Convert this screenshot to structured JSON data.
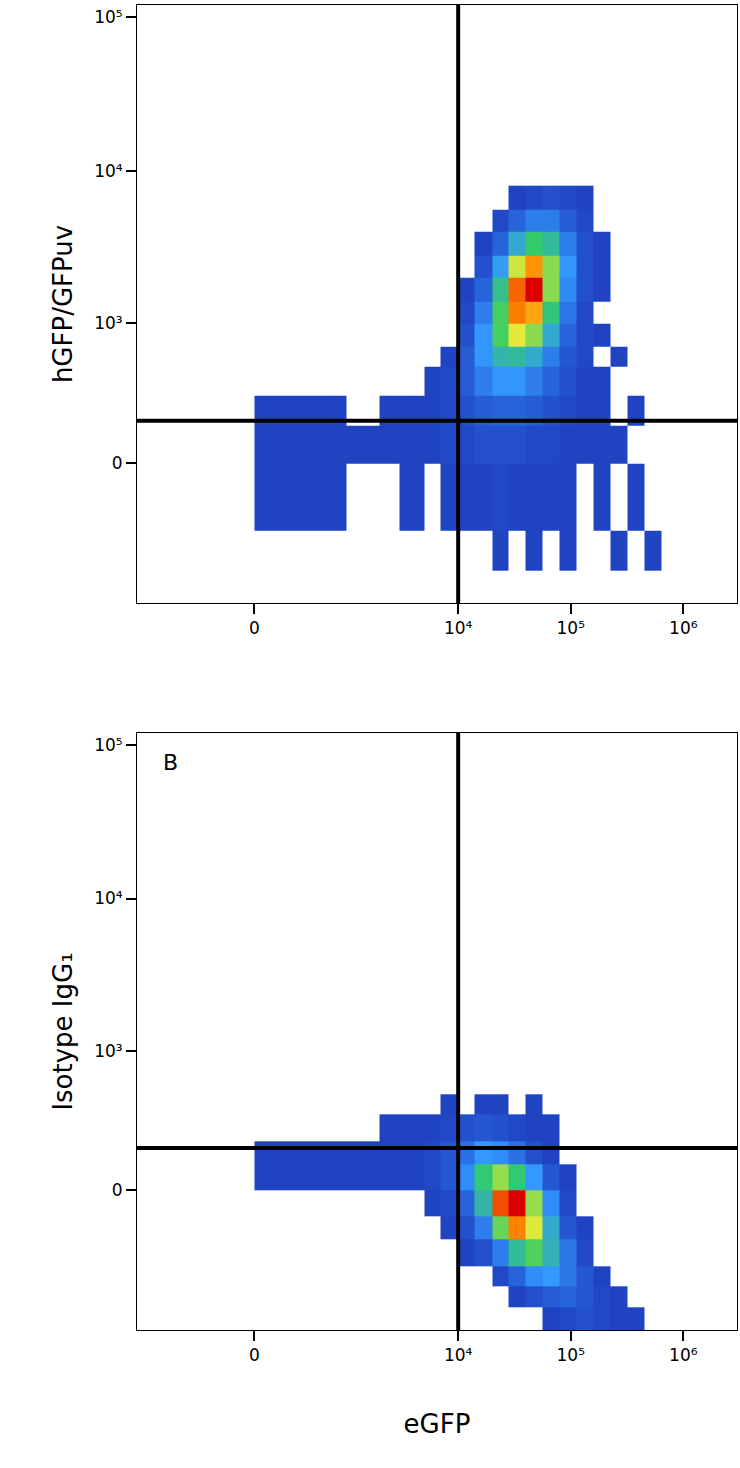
{
  "chart_data": [
    {
      "type": "density",
      "y_label": "hGFP/GFPuv",
      "log": true,
      "grid": false,
      "xlim": [
        -1700,
        3000000
      ],
      "ylim": [
        -1000,
        120000
      ],
      "xticks": [
        0,
        {
          "value": 10000,
          "label": "10⁴"
        },
        {
          "value": 100000,
          "label": "10⁵"
        },
        {
          "value": 1000000,
          "label": "10⁶"
        }
      ],
      "yticks": [
        0,
        {
          "value": 1000,
          "label": "10³"
        },
        {
          "value": 10000,
          "label": "10⁴"
        },
        {
          "value": 100000,
          "label": "10⁵"
        }
      ],
      "quadrant": {
        "x": 10000,
        "y": 170
      },
      "x_bins": [
        0,
        1000,
        2000,
        3000,
        5000,
        7000,
        10000,
        14000,
        20000,
        28000,
        40000,
        56000,
        80000,
        112000,
        160000,
        225000,
        320000,
        450000,
        640000,
        900000
      ],
      "y_bins": [
        -600,
        -300,
        0,
        150,
        300,
        500,
        700,
        1000,
        1400,
        2000,
        2800,
        4000,
        5600,
        8000
      ],
      "counts": [
        [
          0,
          0,
          0,
          0,
          0,
          0,
          0,
          0,
          1,
          0,
          1,
          0,
          1,
          0,
          0,
          1,
          0,
          1,
          0
        ],
        [
          1,
          0,
          0,
          1,
          0,
          1,
          1,
          1,
          2,
          1,
          1,
          1,
          1,
          0,
          1,
          0,
          1,
          0,
          0
        ],
        [
          1,
          1,
          1,
          1,
          1,
          2,
          2,
          3,
          3,
          3,
          2,
          2,
          1,
          1,
          1,
          1,
          0,
          0,
          0
        ],
        [
          1,
          0,
          1,
          1,
          1,
          2,
          3,
          5,
          6,
          6,
          5,
          3,
          2,
          1,
          1,
          0,
          1,
          0,
          0
        ],
        [
          0,
          0,
          0,
          0,
          1,
          2,
          5,
          10,
          14,
          14,
          10,
          6,
          3,
          1,
          1,
          0,
          0,
          0,
          0
        ],
        [
          0,
          0,
          0,
          0,
          0,
          1,
          5,
          14,
          24,
          26,
          20,
          10,
          4,
          2,
          0,
          1,
          0,
          0,
          0
        ],
        [
          0,
          0,
          0,
          0,
          0,
          0,
          3,
          14,
          34,
          48,
          40,
          20,
          6,
          2,
          1,
          0,
          0,
          0,
          0
        ],
        [
          0,
          0,
          0,
          0,
          0,
          0,
          2,
          10,
          34,
          62,
          58,
          30,
          9,
          2,
          0,
          0,
          0,
          0,
          0
        ],
        [
          0,
          0,
          0,
          0,
          0,
          0,
          1,
          6,
          28,
          64,
          72,
          40,
          12,
          3,
          1,
          0,
          0,
          0,
          0
        ],
        [
          0,
          0,
          0,
          0,
          0,
          0,
          0,
          3,
          16,
          46,
          60,
          40,
          14,
          3,
          1,
          0,
          0,
          0,
          0
        ],
        [
          0,
          0,
          0,
          0,
          0,
          0,
          0,
          1,
          6,
          20,
          32,
          26,
          10,
          3,
          1,
          0,
          0,
          0,
          0
        ],
        [
          0,
          0,
          0,
          0,
          0,
          0,
          0,
          0,
          2,
          6,
          10,
          10,
          5,
          2,
          0,
          0,
          0,
          0,
          0
        ],
        [
          0,
          0,
          0,
          0,
          0,
          0,
          0,
          0,
          0,
          1,
          2,
          3,
          2,
          1,
          0,
          0,
          0,
          0,
          0
        ]
      ]
    },
    {
      "type": "density",
      "x_label": "eGFP",
      "y_label": "Isotype IgG₁",
      "annotations": [
        "B"
      ],
      "log": true,
      "grid": false,
      "xlim": [
        -1700,
        3000000
      ],
      "ylim": [
        -1000,
        120000
      ],
      "xticks": [
        0,
        {
          "value": 10000,
          "label": "10⁴"
        },
        {
          "value": 100000,
          "label": "10⁵"
        },
        {
          "value": 1000000,
          "label": "10⁶"
        }
      ],
      "yticks": [
        0,
        {
          "value": 1000,
          "label": "10³"
        },
        {
          "value": 10000,
          "label": "10⁴"
        },
        {
          "value": 100000,
          "label": "10⁵"
        }
      ],
      "quadrant": {
        "x": 10000,
        "y": 170
      },
      "x_bins": [
        0,
        1000,
        2000,
        3000,
        5000,
        7000,
        10000,
        14000,
        20000,
        28000,
        40000,
        56000,
        80000,
        112000,
        160000,
        225000,
        320000,
        450000,
        640000,
        900000
      ],
      "y_bins": [
        -1000,
        -700,
        -500,
        -350,
        -200,
        -100,
        0,
        100,
        200,
        350,
        500
      ],
      "counts": [
        [
          0,
          0,
          0,
          0,
          0,
          0,
          0,
          0,
          0,
          0,
          0,
          1,
          2,
          3,
          2,
          1,
          1,
          0,
          0
        ],
        [
          0,
          0,
          0,
          0,
          0,
          0,
          0,
          0,
          0,
          1,
          3,
          5,
          6,
          4,
          2,
          1,
          0,
          0,
          0
        ],
        [
          0,
          0,
          0,
          0,
          0,
          0,
          0,
          0,
          2,
          6,
          12,
          14,
          9,
          4,
          1,
          0,
          0,
          0,
          0
        ],
        [
          0,
          0,
          0,
          0,
          0,
          0,
          1,
          3,
          10,
          26,
          34,
          22,
          9,
          2,
          0,
          0,
          0,
          0,
          0
        ],
        [
          0,
          0,
          0,
          0,
          0,
          1,
          3,
          10,
          36,
          60,
          46,
          20,
          4,
          1,
          0,
          0,
          0,
          0,
          0
        ],
        [
          0,
          0,
          0,
          0,
          1,
          2,
          6,
          24,
          64,
          70,
          40,
          12,
          2,
          0,
          0,
          0,
          0,
          0,
          0
        ],
        [
          1,
          1,
          1,
          1,
          2,
          4,
          12,
          30,
          40,
          30,
          14,
          4,
          1,
          0,
          0,
          0,
          0,
          0,
          0
        ],
        [
          1,
          1,
          1,
          1,
          2,
          4,
          8,
          14,
          12,
          8,
          3,
          1,
          0,
          0,
          0,
          0,
          0,
          0,
          0
        ],
        [
          0,
          0,
          1,
          1,
          1,
          2,
          3,
          4,
          3,
          2,
          1,
          1,
          0,
          0,
          0,
          0,
          0,
          0,
          0
        ],
        [
          0,
          0,
          0,
          0,
          0,
          1,
          0,
          1,
          1,
          0,
          1,
          0,
          0,
          0,
          0,
          0,
          0,
          0,
          0
        ]
      ]
    }
  ]
}
